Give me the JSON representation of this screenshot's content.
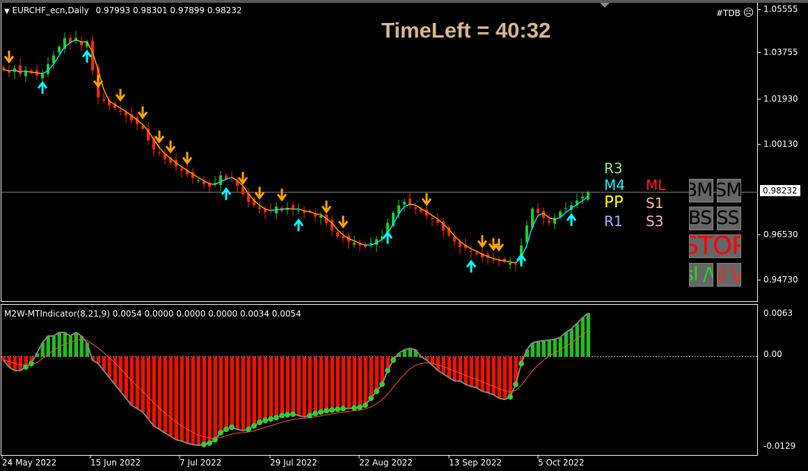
{
  "header": {
    "symbol_label": "EURCHF_ecn,Daily",
    "ohlc": "0.97993 0.98301 0.97899 0.98232",
    "expert": "#TDB",
    "expert_icon": "sad-face-icon"
  },
  "timeleft": "TimeLeft = 40:32",
  "price_axis": [
    "1.05555",
    "1.03755",
    "1.01930",
    "1.00130",
    "0.96530",
    "0.94730"
  ],
  "current_price": "0.98232",
  "indicator": {
    "label": "M2W-MTIndicator(8,21,9) 0.0054 0.0000 0.0000 0.0000 0.0034 0.0054",
    "axis": [
      "0.0063",
      "0.00",
      "-0.0129"
    ]
  },
  "dates": [
    "24 May 2022",
    "15 Jun 2022",
    "7 Jul 2022",
    "29 Jul 2022",
    "22 Aug 2022",
    "13 Sep 2022",
    "5 Oct 2022"
  ],
  "buttons": [
    {
      "label": "BM",
      "color": "#000000"
    },
    {
      "label": "SM",
      "color": "#000000"
    },
    {
      "label": "BS",
      "color": "#000000"
    },
    {
      "label": "SS",
      "color": "#000000"
    },
    {
      "label": "STOP",
      "color": "#ff0000"
    },
    {
      "label": "sl /\\",
      "color": "#22dd22"
    },
    {
      "label": "sl \\/",
      "color": "#ff2222"
    }
  ],
  "levels": [
    {
      "label": "R3",
      "color": "#90ee90"
    },
    {
      "label": "M4",
      "color": "#00ffff"
    },
    {
      "label": "PP",
      "color": "#ffff00"
    },
    {
      "label": "R1",
      "color": "#b0b0ff"
    },
    {
      "label": "ML",
      "color": "#ff2020"
    },
    {
      "label": "S1",
      "color": "#ffb6b6"
    },
    {
      "label": "S3",
      "color": "#ffb6c1"
    }
  ],
  "colors": {
    "bull": "#22cc22",
    "bear": "#ff2a00",
    "up_arrow": "#00ffff",
    "down_arrow": "#ffa500",
    "hist_pos": "#22bb22",
    "hist_neg": "#ee1100",
    "dots": "#33cc33",
    "timeleft": "#d8b890"
  },
  "chart_data": {
    "type": "candlestick",
    "close": [
      1.0313,
      1.03,
      1.0318,
      1.0295,
      1.031,
      1.0302,
      1.029,
      1.03,
      1.0335,
      1.037,
      1.0405,
      1.0439,
      1.042,
      1.044,
      1.041,
      1.0425,
      1.031,
      1.0202,
      1.019,
      1.017,
      1.016,
      1.0147,
      1.013,
      1.011,
      1.0095,
      1.0077,
      1.003,
      0.9994,
      0.998,
      0.9955,
      0.994,
      0.9925,
      0.991,
      0.9895,
      0.988,
      0.987,
      0.9855,
      0.9846,
      0.986,
      0.989,
      0.9875,
      0.9882,
      0.985,
      0.9815,
      0.9785,
      0.977,
      0.9755,
      0.9743,
      0.975,
      0.9765,
      0.9748,
      0.976,
      0.9757,
      0.975,
      0.974,
      0.9745,
      0.9725,
      0.9729,
      0.97,
      0.967,
      0.9646,
      0.964,
      0.9625,
      0.962,
      0.961,
      0.9604,
      0.962,
      0.9635,
      0.9646,
      0.97,
      0.974,
      0.977,
      0.9785,
      0.977,
      0.9757,
      0.9745,
      0.973,
      0.9715,
      0.9701,
      0.967,
      0.965,
      0.9625,
      0.9604,
      0.96,
      0.9585,
      0.9575,
      0.9562,
      0.956,
      0.955,
      0.9548,
      0.9545,
      0.954,
      0.9534,
      0.961,
      0.969,
      0.9757,
      0.974,
      0.972,
      0.9701,
      0.972,
      0.9745,
      0.976,
      0.9771,
      0.979,
      0.9805,
      0.9823
    ],
    "ylim": [
      0.9473,
      1.05555
    ],
    "down_arrow_bars": [
      1,
      17,
      21,
      25,
      28,
      30,
      33,
      43,
      46,
      50,
      58,
      61,
      76,
      86,
      88,
      89
    ],
    "up_arrow_bars": [
      7,
      15,
      40,
      53,
      69,
      84,
      93,
      102
    ],
    "histogram": [
      -0.0005,
      -0.0015,
      -0.002,
      -0.002,
      -0.0015,
      -0.001,
      0.0005,
      0.002,
      0.003,
      0.003,
      0.0035,
      0.0035,
      0.003,
      0.0035,
      0.003,
      0.002,
      -0.0005,
      -0.001,
      -0.002,
      -0.003,
      -0.004,
      -0.005,
      -0.006,
      -0.007,
      -0.0075,
      -0.008,
      -0.009,
      -0.01,
      -0.0105,
      -0.011,
      -0.0115,
      -0.012,
      -0.0122,
      -0.0125,
      -0.0127,
      -0.0128,
      -0.0127,
      -0.0125,
      -0.012,
      -0.011,
      -0.0105,
      -0.0102,
      -0.0105,
      -0.0107,
      -0.0105,
      -0.01,
      -0.0095,
      -0.0092,
      -0.009,
      -0.0088,
      -0.0085,
      -0.0084,
      -0.0083,
      -0.0085,
      -0.0087,
      -0.0085,
      -0.0082,
      -0.008,
      -0.0078,
      -0.0077,
      -0.0076,
      -0.0075,
      -0.0075,
      -0.0074,
      -0.0073,
      -0.007,
      -0.006,
      -0.005,
      -0.004,
      -0.002,
      -0.0005,
      0.0005,
      0.001,
      0.0012,
      0.001,
      0,
      -0.0005,
      -0.0012,
      -0.002,
      -0.0025,
      -0.003,
      -0.0035,
      -0.0035,
      -0.004,
      -0.0043,
      -0.0045,
      -0.005,
      -0.0052,
      -0.0055,
      -0.006,
      -0.0062,
      -0.0058,
      -0.004,
      -0.001,
      0.001,
      0.002,
      0.0022,
      0.0023,
      0.0024,
      0.0025,
      0.0028,
      0.0035,
      0.004,
      0.0048,
      0.0056,
      0.0063
    ],
    "hist_ylim": [
      -0.0129,
      0.0063
    ]
  }
}
